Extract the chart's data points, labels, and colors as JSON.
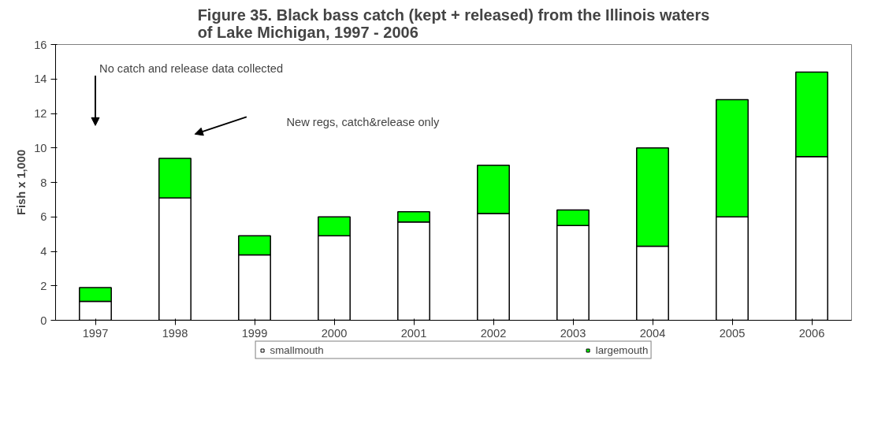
{
  "chart_data": {
    "type": "bar",
    "stacked": true,
    "title": "Figure 35. Black bass catch (kept + released) from the Illinois waters of Lake Michigan, 1997 - 2006",
    "ylabel": "Fish x 1,000",
    "categories": [
      "1997",
      "1998",
      "1999",
      "2000",
      "2001",
      "2002",
      "2003",
      "2004",
      "2005",
      "2006"
    ],
    "series": [
      {
        "name": "smallmouth",
        "color": "#ffffff",
        "values": [
          1.1,
          7.1,
          3.8,
          4.9,
          5.7,
          6.2,
          5.5,
          4.3,
          6.0,
          9.5
        ]
      },
      {
        "name": "largemouth",
        "color": "#00ff00",
        "values": [
          0.8,
          2.3,
          1.1,
          1.1,
          0.6,
          2.8,
          0.9,
          5.7,
          6.8,
          4.9
        ]
      }
    ],
    "ylim": [
      0,
      16
    ],
    "yticks": [
      0,
      2,
      4,
      6,
      8,
      10,
      12,
      14,
      16
    ],
    "grid": false,
    "legend": "bottom",
    "annotations": [
      "No catch and release data collected",
      "New  regs, catch&release only"
    ]
  }
}
